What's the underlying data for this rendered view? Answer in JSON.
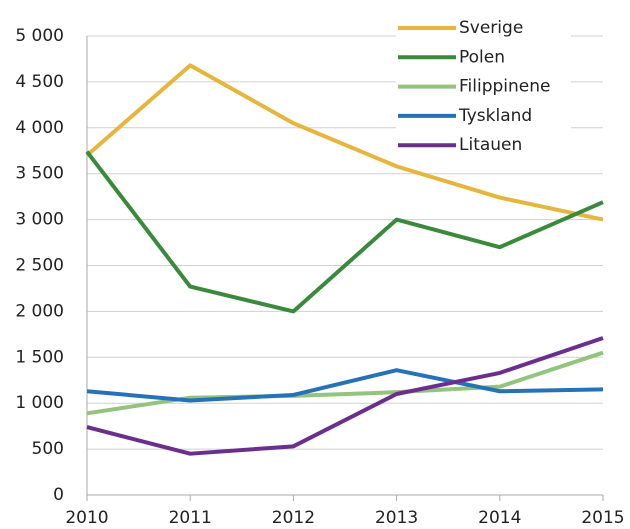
{
  "chart_data": {
    "type": "line",
    "x": [
      2010,
      2011,
      2012,
      2013,
      2014,
      2015
    ],
    "xlim": [
      2010,
      2015
    ],
    "xticks": [
      2010,
      2011,
      2012,
      2013,
      2014,
      2015
    ],
    "ylim": [
      0,
      5000
    ],
    "yticks": [
      0,
      500,
      {
        "value": 1000,
        "label": "1 000"
      },
      {
        "value": 1500,
        "label": "1 500"
      },
      {
        "value": 2000,
        "label": "2 000"
      },
      {
        "value": 2500,
        "label": "2 500"
      },
      {
        "value": 3000,
        "label": "3 000"
      },
      {
        "value": 3500,
        "label": "3 500"
      },
      {
        "value": 4000,
        "label": "4 000"
      },
      {
        "value": 4500,
        "label": "4 500"
      },
      {
        "value": 5000,
        "label": "5 000"
      }
    ],
    "grid": true,
    "legend": "top-right",
    "series": [
      {
        "name": "Sverige",
        "color": "#e8b53c",
        "values": [
          3700,
          4680,
          4050,
          3580,
          3240,
          3000
        ]
      },
      {
        "name": "Polen",
        "color": "#3a8a3c",
        "values": [
          3740,
          2270,
          2000,
          3000,
          2700,
          3190
        ]
      },
      {
        "name": "Filippinene",
        "color": "#93c47d",
        "values": [
          890,
          1060,
          1080,
          1120,
          1180,
          1550
        ]
      },
      {
        "name": "Tyskland",
        "color": "#2672b8",
        "values": [
          1130,
          1030,
          1090,
          1360,
          1130,
          1150
        ]
      },
      {
        "name": "Litauen",
        "color": "#6a2e8c",
        "values": [
          740,
          450,
          530,
          1100,
          1330,
          1710
        ]
      }
    ]
  }
}
